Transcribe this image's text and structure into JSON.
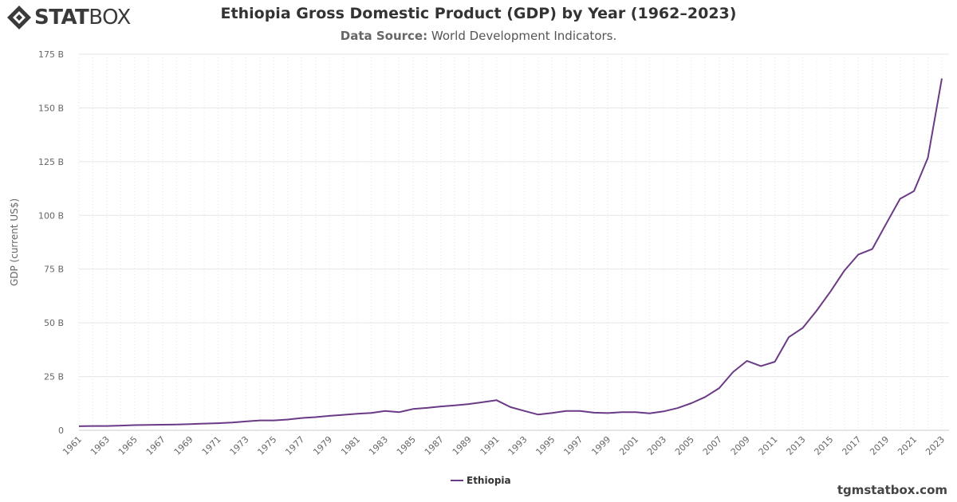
{
  "brand": {
    "logo_bold": "STAT",
    "logo_thin": "BOX"
  },
  "header": {
    "title": "Ethiopia Gross Domestic Product (GDP) by Year (1962–2023)",
    "subtitle_label": "Data Source:",
    "subtitle_value": "World Development Indicators."
  },
  "footer": {
    "site": "tgmstatbox.com"
  },
  "colors": {
    "series": "#6b3a86",
    "grid": "#e6e6e6",
    "axis_text": "#666666"
  },
  "chart_data": {
    "type": "line",
    "title": "Ethiopia Gross Domestic Product (GDP) by Year (1962–2023)",
    "ylabel": "GDP (current US$)",
    "xlabel": "",
    "ylim": [
      0,
      175
    ],
    "y_unit": "B",
    "y_ticks": [
      "0",
      "25 B",
      "50 B",
      "75 B",
      "100 B",
      "125 B",
      "150 B",
      "175 B"
    ],
    "x_ticks": [
      "1961",
      "1963",
      "1965",
      "1967",
      "1969",
      "1971",
      "1973",
      "1975",
      "1977",
      "1979",
      "1981",
      "1983",
      "1985",
      "1987",
      "1989",
      "1991",
      "1993",
      "1995",
      "1997",
      "1999",
      "2001",
      "2003",
      "2005",
      "2007",
      "2009",
      "2011",
      "2013",
      "2015",
      "2017",
      "2019",
      "2021",
      "2023"
    ],
    "legend_position": "bottom-center",
    "grid": true,
    "x": [
      1961,
      1962,
      1963,
      1964,
      1965,
      1966,
      1967,
      1968,
      1969,
      1970,
      1971,
      1972,
      1973,
      1974,
      1975,
      1976,
      1977,
      1978,
      1979,
      1980,
      1981,
      1982,
      1983,
      1984,
      1985,
      1986,
      1987,
      1988,
      1989,
      1990,
      1991,
      1992,
      1993,
      1994,
      1995,
      1996,
      1997,
      1998,
      1999,
      2000,
      2001,
      2002,
      2003,
      2004,
      2005,
      2006,
      2007,
      2008,
      2009,
      2010,
      2011,
      2012,
      2013,
      2014,
      2015,
      2016,
      2017,
      2018,
      2019,
      2020,
      2021,
      2022,
      2023
    ],
    "series": [
      {
        "name": "Ethiopia",
        "values": [
          1.9,
          2.0,
          2.0,
          2.2,
          2.4,
          2.5,
          2.6,
          2.7,
          2.9,
          3.1,
          3.3,
          3.6,
          4.1,
          4.6,
          4.6,
          5.0,
          5.7,
          6.1,
          6.7,
          7.2,
          7.7,
          8.1,
          9.0,
          8.4,
          9.9,
          10.4,
          11.1,
          11.6,
          12.2,
          13.1,
          14.0,
          10.8,
          9.0,
          7.3,
          8.1,
          9.0,
          9.0,
          8.2,
          8.0,
          8.4,
          8.4,
          7.9,
          8.8,
          10.3,
          12.6,
          15.5,
          19.6,
          27.1,
          32.3,
          29.9,
          31.9,
          43.3,
          47.6,
          55.6,
          64.6,
          74.3,
          81.8,
          84.3,
          96.1,
          107.7,
          111.3,
          126.8,
          163.7
        ]
      }
    ]
  }
}
